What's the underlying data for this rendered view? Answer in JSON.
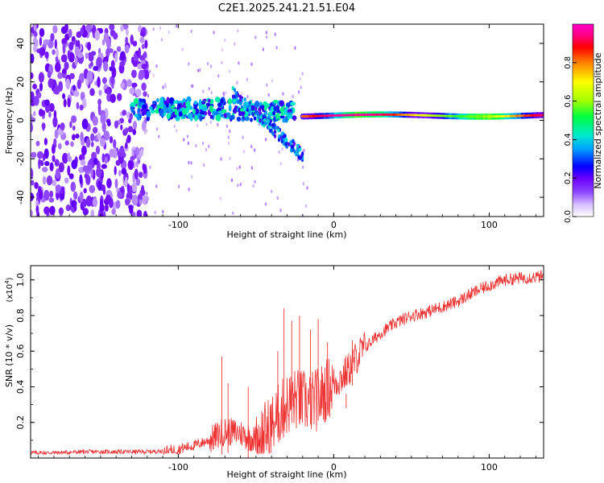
{
  "page_title": "C2E1.2025.241.21.51.E04",
  "chart_data": [
    {
      "type": "heatmap",
      "title": "C2E1.2025.241.21.51.E04",
      "xlabel": "Height of straight line (km)",
      "ylabel": "Frequency (Hz)",
      "xlim": [
        -195,
        135
      ],
      "ylim": [
        -50,
        50
      ],
      "x_ticks": [
        -100,
        0,
        100
      ],
      "x_tick_labels": [
        "-100",
        "0",
        "100"
      ],
      "y_ticks": [
        -40,
        -20,
        0,
        20,
        40
      ],
      "y_tick_labels": [
        "-40",
        "-20",
        "0",
        "20",
        "40"
      ],
      "colorbar": {
        "label": "Normalized spectral amplitude",
        "range": [
          0,
          1
        ],
        "ticks": [
          0,
          0.2,
          0.4,
          0.6,
          0.8
        ],
        "tick_labels": [
          "0.0",
          "0.2",
          "0.4",
          "0.6",
          "0.8"
        ],
        "colors": [
          "#ffffff",
          "#d9c2ff",
          "#8c42ff",
          "#6a00ff",
          "#0000ff",
          "#00a0ff",
          "#00e8d0",
          "#00ff40",
          "#a0ff00",
          "#ffff00",
          "#ff8000",
          "#ff0000",
          "#ff0080",
          "#ff00c8"
        ]
      },
      "features": [
        {
          "name": "broadband noise",
          "x_range": [
            -195,
            -120
          ],
          "freq_range": [
            -50,
            50
          ],
          "amplitude": 0.12
        },
        {
          "name": "emerging band",
          "x_range": [
            -130,
            -30
          ],
          "freq_center": 6,
          "amplitude": 0.35
        },
        {
          "name": "drifting branch",
          "x_range": [
            -65,
            -20
          ],
          "freq_from": 14,
          "freq_to": -18,
          "amplitude": 0.3
        },
        {
          "name": "stable line",
          "x_range": [
            -20,
            135
          ],
          "freq_center": 2.5,
          "amplitude": 0.95
        }
      ]
    },
    {
      "type": "line",
      "xlabel": "Height of straight line (km)",
      "ylabel": "SNR (10 * v/v)",
      "y_scale_label": "(x10",
      "y_scale_exponent": "4",
      "y_scale_suffix": ")",
      "xlim": [
        -195,
        135
      ],
      "ylim": [
        0,
        1.08
      ],
      "x_ticks": [
        -100,
        0,
        100
      ],
      "x_tick_labels": [
        "-100",
        "0",
        "100"
      ],
      "y_ticks": [
        0.2,
        0.4,
        0.6,
        0.8,
        1.0
      ],
      "y_tick_labels": [
        "0.2",
        "0.4",
        "0.6",
        "0.8",
        "1.0"
      ],
      "color": "#ee3333",
      "series": [
        {
          "name": "SNR",
          "x": [
            -195,
            -180,
            -160,
            -140,
            -120,
            -110,
            -100,
            -90,
            -80,
            -70,
            -60,
            -50,
            -40,
            -35,
            -30,
            -25,
            -20,
            -15,
            -10,
            -5,
            0,
            5,
            10,
            15,
            20,
            30,
            40,
            50,
            60,
            70,
            80,
            90,
            100,
            110,
            120,
            135
          ],
          "y": [
            0.03,
            0.03,
            0.035,
            0.035,
            0.035,
            0.04,
            0.05,
            0.07,
            0.1,
            0.15,
            0.14,
            0.1,
            0.18,
            0.25,
            0.3,
            0.33,
            0.32,
            0.31,
            0.33,
            0.38,
            0.42,
            0.45,
            0.5,
            0.57,
            0.62,
            0.7,
            0.76,
            0.8,
            0.82,
            0.85,
            0.88,
            0.93,
            0.97,
            1.0,
            1.01,
            1.02
          ]
        }
      ],
      "spikes": [
        {
          "x": -72,
          "y": 0.57
        },
        {
          "x": -68,
          "y": 0.42
        },
        {
          "x": -55,
          "y": 0.4
        },
        {
          "x": -36,
          "y": 0.6
        },
        {
          "x": -32,
          "y": 0.84
        },
        {
          "x": -27,
          "y": 0.77
        },
        {
          "x": -22,
          "y": 0.8
        },
        {
          "x": -15,
          "y": 0.72
        },
        {
          "x": -10,
          "y": 0.78
        },
        {
          "x": -4,
          "y": 0.65
        },
        {
          "x": 8,
          "y": 0.28
        },
        {
          "x": 12,
          "y": 0.66
        }
      ]
    }
  ]
}
